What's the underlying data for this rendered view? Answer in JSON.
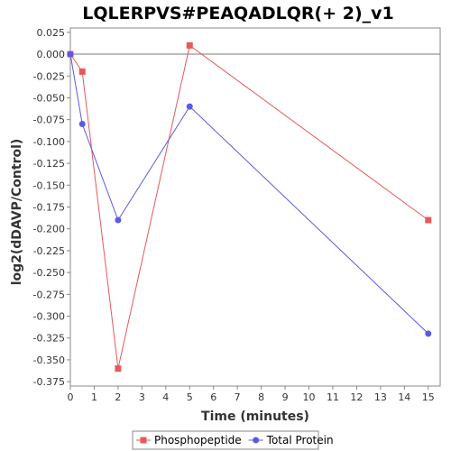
{
  "chart_data": {
    "type": "line",
    "title": "LQLERPVS#PEAQADLQR(+ 2)_v1",
    "xlabel": "Time (minutes)",
    "ylabel": "log2(dDAVP/Control)",
    "xlim": [
      0,
      15.5
    ],
    "ylim": [
      -0.38,
      0.03
    ],
    "x_ticks": [
      0,
      1,
      2,
      3,
      4,
      5,
      6,
      7,
      8,
      9,
      10,
      11,
      12,
      13,
      14,
      15
    ],
    "y_ticks": [
      0.025,
      0.0,
      -0.025,
      -0.05,
      -0.075,
      -0.1,
      -0.125,
      -0.15,
      -0.175,
      -0.2,
      -0.225,
      -0.25,
      -0.275,
      -0.3,
      -0.325,
      -0.35,
      -0.375
    ],
    "y_tick_labels": [
      "0.025",
      "0.000",
      "-0.025",
      "-0.050",
      "-0.075",
      "-0.100",
      "-0.125",
      "-0.150",
      "-0.175",
      "-0.200",
      "-0.225",
      "-0.250",
      "-0.275",
      "-0.300",
      "-0.325",
      "-0.350",
      "-0.375"
    ],
    "zero_line": true,
    "grid": false,
    "legend_position": "bottom",
    "series": [
      {
        "name": "Phosphopeptide",
        "color": "#e8585a",
        "marker": "square",
        "x": [
          0,
          0.5,
          2,
          5,
          15
        ],
        "y": [
          0.0,
          -0.02,
          -0.36,
          0.01,
          -0.19
        ]
      },
      {
        "name": "Total Protein",
        "color": "#5a5ae8",
        "marker": "circle",
        "x": [
          0,
          0.5,
          2,
          5,
          15
        ],
        "y": [
          0.0,
          -0.08,
          -0.19,
          -0.06,
          -0.32
        ]
      }
    ]
  }
}
